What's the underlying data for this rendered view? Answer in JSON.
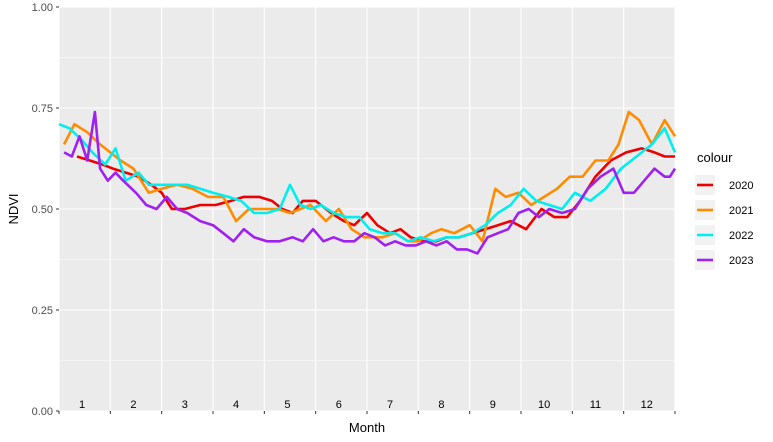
{
  "chart_data": {
    "type": "line",
    "xlabel": "Month",
    "ylabel": "NDVI",
    "ylim": [
      0,
      1
    ],
    "xlim": [
      0,
      12
    ],
    "y_ticks": [
      "0.00",
      "0.25",
      "0.50",
      "0.75",
      "1.00"
    ],
    "y_tick_values": [
      0,
      0.25,
      0.5,
      0.75,
      1.0
    ],
    "month_labels": [
      "1",
      "2",
      "3",
      "4",
      "5",
      "6",
      "7",
      "8",
      "9",
      "10",
      "11",
      "12"
    ],
    "grid": true,
    "legend_position": "right",
    "legend_title": "colour",
    "series": [
      {
        "name": "2020",
        "color": "#ee0000",
        "x": [
          0.35,
          0.6,
          0.85,
          1.05,
          1.3,
          1.55,
          1.8,
          2.0,
          2.2,
          2.45,
          2.75,
          3.05,
          3.35,
          3.6,
          3.9,
          4.15,
          4.35,
          4.55,
          4.75,
          5.0,
          5.3,
          5.55,
          5.75,
          6.0,
          6.2,
          6.45,
          6.65,
          6.85,
          7.1,
          7.35,
          7.55,
          7.8,
          8.05,
          8.3,
          8.55,
          8.8,
          9.1,
          9.4,
          9.65,
          9.9,
          10.15,
          10.45,
          10.75,
          11.05,
          11.35,
          11.6,
          11.8,
          12.0
        ],
        "y": [
          0.63,
          0.62,
          0.61,
          0.6,
          0.59,
          0.58,
          0.56,
          0.54,
          0.5,
          0.5,
          0.51,
          0.51,
          0.52,
          0.53,
          0.53,
          0.52,
          0.5,
          0.49,
          0.52,
          0.52,
          0.49,
          0.47,
          0.46,
          0.49,
          0.46,
          0.44,
          0.45,
          0.43,
          0.42,
          0.42,
          0.43,
          0.43,
          0.44,
          0.45,
          0.46,
          0.47,
          0.45,
          0.5,
          0.48,
          0.48,
          0.52,
          0.58,
          0.62,
          0.64,
          0.65,
          0.64,
          0.63,
          0.63
        ]
      },
      {
        "name": "2021",
        "color": "#ff8c00",
        "x": [
          0.1,
          0.3,
          0.55,
          0.8,
          1.0,
          1.2,
          1.45,
          1.75,
          2.0,
          2.3,
          2.6,
          2.9,
          3.2,
          3.45,
          3.7,
          3.95,
          4.25,
          4.5,
          4.7,
          4.9,
          5.2,
          5.45,
          5.7,
          5.95,
          6.15,
          6.3,
          6.55,
          6.8,
          7.0,
          7.25,
          7.45,
          7.7,
          8.0,
          8.25,
          8.5,
          8.7,
          8.95,
          9.2,
          9.45,
          9.7,
          9.95,
          10.2,
          10.45,
          10.7,
          10.9,
          11.1,
          11.3,
          11.55,
          11.8,
          12.0
        ],
        "y": [
          0.66,
          0.71,
          0.69,
          0.66,
          0.64,
          0.62,
          0.6,
          0.54,
          0.55,
          0.56,
          0.55,
          0.53,
          0.53,
          0.47,
          0.5,
          0.5,
          0.5,
          0.49,
          0.5,
          0.51,
          0.47,
          0.5,
          0.45,
          0.43,
          0.43,
          0.43,
          0.44,
          0.42,
          0.42,
          0.44,
          0.45,
          0.44,
          0.46,
          0.42,
          0.55,
          0.53,
          0.54,
          0.51,
          0.53,
          0.55,
          0.58,
          0.58,
          0.62,
          0.62,
          0.66,
          0.74,
          0.72,
          0.66,
          0.72,
          0.68
        ]
      },
      {
        "name": "2022",
        "color": "#00eeee",
        "x": [
          0.0,
          0.2,
          0.45,
          0.65,
          0.9,
          1.1,
          1.3,
          1.55,
          1.75,
          2.0,
          2.25,
          2.5,
          2.75,
          3.0,
          3.3,
          3.55,
          3.8,
          4.05,
          4.3,
          4.5,
          4.7,
          4.9,
          5.1,
          5.35,
          5.6,
          5.85,
          6.05,
          6.3,
          6.55,
          6.8,
          7.05,
          7.3,
          7.55,
          7.8,
          8.05,
          8.3,
          8.55,
          8.8,
          9.05,
          9.3,
          9.55,
          9.8,
          10.05,
          10.35,
          10.65,
          10.95,
          11.25,
          11.55,
          11.8,
          12.0
        ],
        "y": [
          0.71,
          0.7,
          0.67,
          0.64,
          0.61,
          0.65,
          0.57,
          0.59,
          0.56,
          0.56,
          0.56,
          0.56,
          0.55,
          0.54,
          0.53,
          0.52,
          0.49,
          0.49,
          0.5,
          0.56,
          0.51,
          0.5,
          0.51,
          0.49,
          0.48,
          0.48,
          0.45,
          0.44,
          0.44,
          0.42,
          0.43,
          0.42,
          0.43,
          0.43,
          0.44,
          0.46,
          0.49,
          0.51,
          0.55,
          0.52,
          0.51,
          0.5,
          0.54,
          0.52,
          0.55,
          0.6,
          0.63,
          0.66,
          0.7,
          0.64
        ]
      },
      {
        "name": "2023",
        "color": "#a020f0",
        "x": [
          0.1,
          0.25,
          0.4,
          0.55,
          0.7,
          0.8,
          0.95,
          1.1,
          1.25,
          1.5,
          1.7,
          1.9,
          2.1,
          2.3,
          2.5,
          2.75,
          3.0,
          3.2,
          3.4,
          3.6,
          3.8,
          4.05,
          4.3,
          4.55,
          4.75,
          4.95,
          5.15,
          5.35,
          5.55,
          5.75,
          5.95,
          6.15,
          6.35,
          6.55,
          6.75,
          6.95,
          7.15,
          7.35,
          7.55,
          7.75,
          7.95,
          8.15,
          8.35,
          8.55,
          8.75,
          8.95,
          9.15,
          9.35,
          9.55,
          9.8,
          10.05,
          10.3,
          10.55,
          10.8,
          11.0,
          11.2,
          11.4,
          11.6,
          11.8,
          11.9,
          12.0
        ],
        "y": [
          0.64,
          0.63,
          0.68,
          0.62,
          0.74,
          0.6,
          0.57,
          0.59,
          0.57,
          0.54,
          0.51,
          0.5,
          0.53,
          0.5,
          0.49,
          0.47,
          0.46,
          0.44,
          0.42,
          0.45,
          0.43,
          0.42,
          0.42,
          0.43,
          0.42,
          0.45,
          0.42,
          0.43,
          0.42,
          0.42,
          0.44,
          0.43,
          0.41,
          0.42,
          0.41,
          0.41,
          0.42,
          0.41,
          0.42,
          0.4,
          0.4,
          0.39,
          0.43,
          0.44,
          0.45,
          0.49,
          0.5,
          0.48,
          0.5,
          0.49,
          0.5,
          0.55,
          0.58,
          0.6,
          0.54,
          0.54,
          0.57,
          0.6,
          0.58,
          0.58,
          0.6
        ]
      }
    ]
  }
}
